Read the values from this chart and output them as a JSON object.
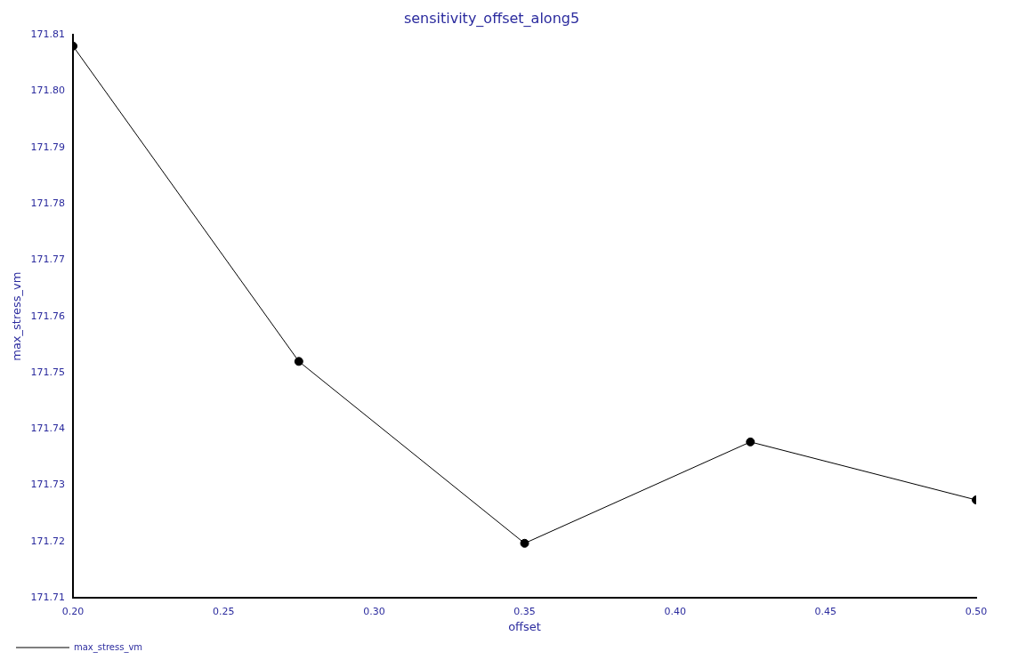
{
  "chart_data": {
    "type": "line",
    "title": "sensitivity_offset_along5",
    "xlabel": "offset",
    "ylabel": "max_stress_vm",
    "x": [
      0.2,
      0.275,
      0.35,
      0.425,
      0.5
    ],
    "series": [
      {
        "name": "max_stress_vm",
        "color": "#000000",
        "values": [
          171.808,
          171.752,
          171.7197,
          171.7377,
          171.7274
        ]
      }
    ],
    "xlim": [
      0.2,
      0.5
    ],
    "xticks": [
      {
        "value": 0.2,
        "label": "0.20"
      },
      {
        "value": 0.25,
        "label": "0.25"
      },
      {
        "value": 0.3,
        "label": "0.30"
      },
      {
        "value": 0.35,
        "label": "0.35"
      },
      {
        "value": 0.4,
        "label": "0.40"
      },
      {
        "value": 0.45,
        "label": "0.45"
      },
      {
        "value": 0.5,
        "label": "0.50"
      }
    ],
    "ylim": [
      171.71,
      171.81
    ],
    "yticks": [
      171.71,
      171.72,
      171.73,
      171.74,
      171.75,
      171.76,
      171.77,
      171.78,
      171.79,
      {
        "value": 171.8,
        "label": "171.80"
      },
      171.81
    ],
    "grid": false,
    "legend": "bottom left",
    "marker": "circle",
    "line_style": "solid"
  }
}
